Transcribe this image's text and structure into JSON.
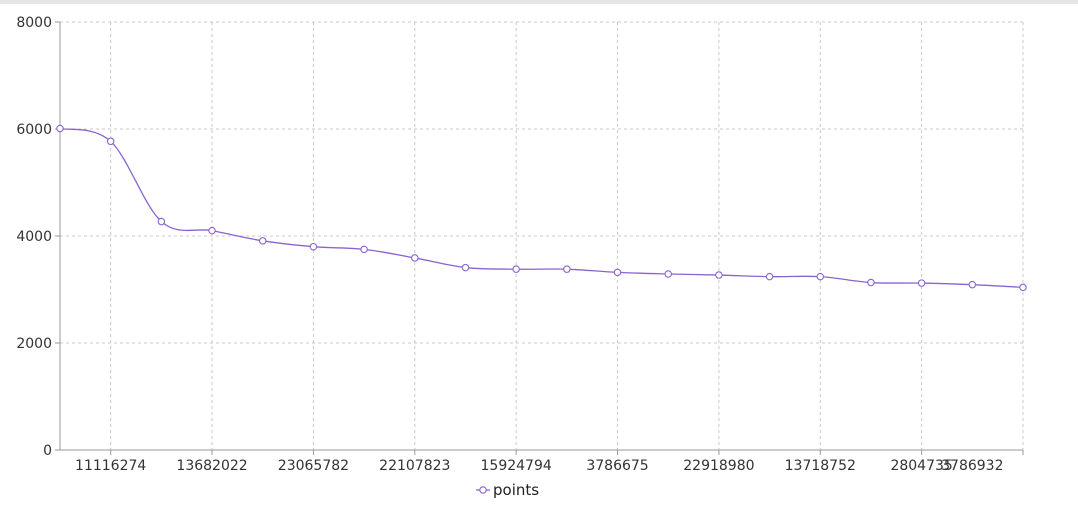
{
  "chart_data": {
    "type": "line",
    "title": "",
    "xlabel": "",
    "ylabel": "",
    "x": [
      "",
      "11116274",
      "",
      "13682022",
      "",
      "23065782",
      "",
      "22107823",
      "",
      "15924794",
      "",
      "3786675",
      "",
      "22918980",
      "",
      "13718752",
      "",
      "2804735",
      "3786932",
      ""
    ],
    "x_tick_labels": [
      "11116274",
      "13682022",
      "23065782",
      "22107823",
      "15924794",
      "3786675",
      "22918980",
      "13718752",
      "2804735",
      "3786932"
    ],
    "y_ticks": [
      0,
      2000,
      4000,
      6000,
      8000
    ],
    "ylim": [
      0,
      8000
    ],
    "series": [
      {
        "name": "points",
        "color": "#8a63d2",
        "values": [
          6010,
          5770,
          4270,
          4100,
          3910,
          3800,
          3750,
          3590,
          3410,
          3380,
          3380,
          3320,
          3290,
          3270,
          3240,
          3240,
          3130,
          3120,
          3090,
          3040
        ]
      }
    ],
    "grid": true,
    "legend": "bottom-center"
  }
}
